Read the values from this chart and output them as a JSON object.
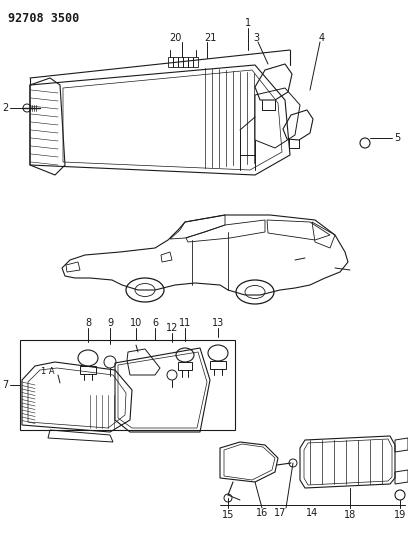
{
  "title_code": "92708 3500",
  "background_color": "#ffffff",
  "line_color": "#1a1a1a",
  "fig_width": 4.08,
  "fig_height": 5.33,
  "dpi": 100
}
